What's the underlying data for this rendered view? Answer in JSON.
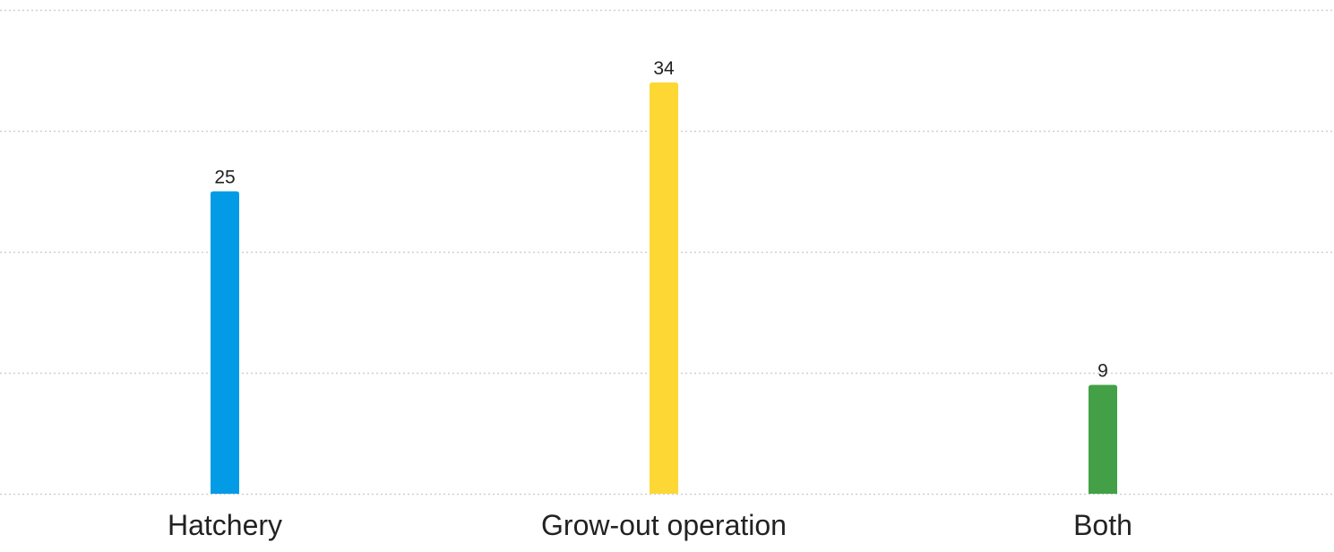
{
  "chart_data": {
    "type": "bar",
    "categories": [
      "Hatchery",
      "Grow-out operation",
      "Both"
    ],
    "values": [
      25,
      34,
      9
    ],
    "colors": [
      "#039be5",
      "#fdd835",
      "#43a047"
    ],
    "ylim": [
      0,
      40
    ],
    "grid": true,
    "gridlines": [
      0,
      10,
      20,
      30,
      40
    ],
    "data_labels": true,
    "legend": "none",
    "title": "",
    "xlabel": "",
    "ylabel": ""
  }
}
